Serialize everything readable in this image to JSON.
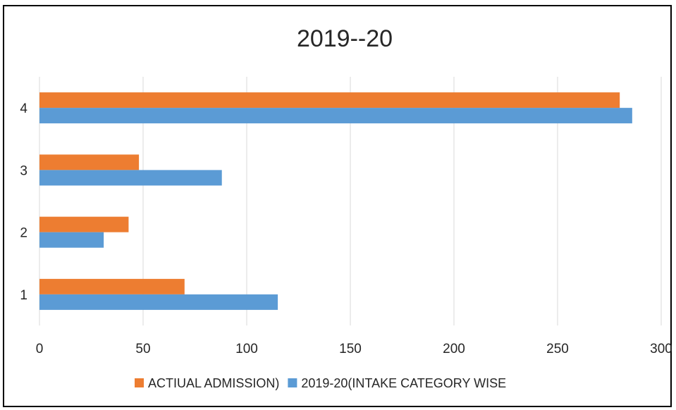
{
  "chart_data": {
    "type": "bar",
    "orientation": "horizontal",
    "title": "2019--20",
    "categories": [
      "1",
      "2",
      "3",
      "4"
    ],
    "series": [
      {
        "name": "ACTIUAL ADMISSION)",
        "color": "#ED7D31",
        "values": [
          70,
          43,
          48,
          280
        ]
      },
      {
        "name": "2019-20(INTAKE CATEGORY WISE",
        "color": "#5B9BD5",
        "values": [
          115,
          31,
          88,
          286
        ]
      }
    ],
    "xlim": [
      0,
      300
    ],
    "x_ticks": [
      0,
      50,
      100,
      150,
      200,
      250,
      300
    ],
    "grid": true,
    "legend": "bottom",
    "xlabel": "",
    "ylabel": ""
  }
}
